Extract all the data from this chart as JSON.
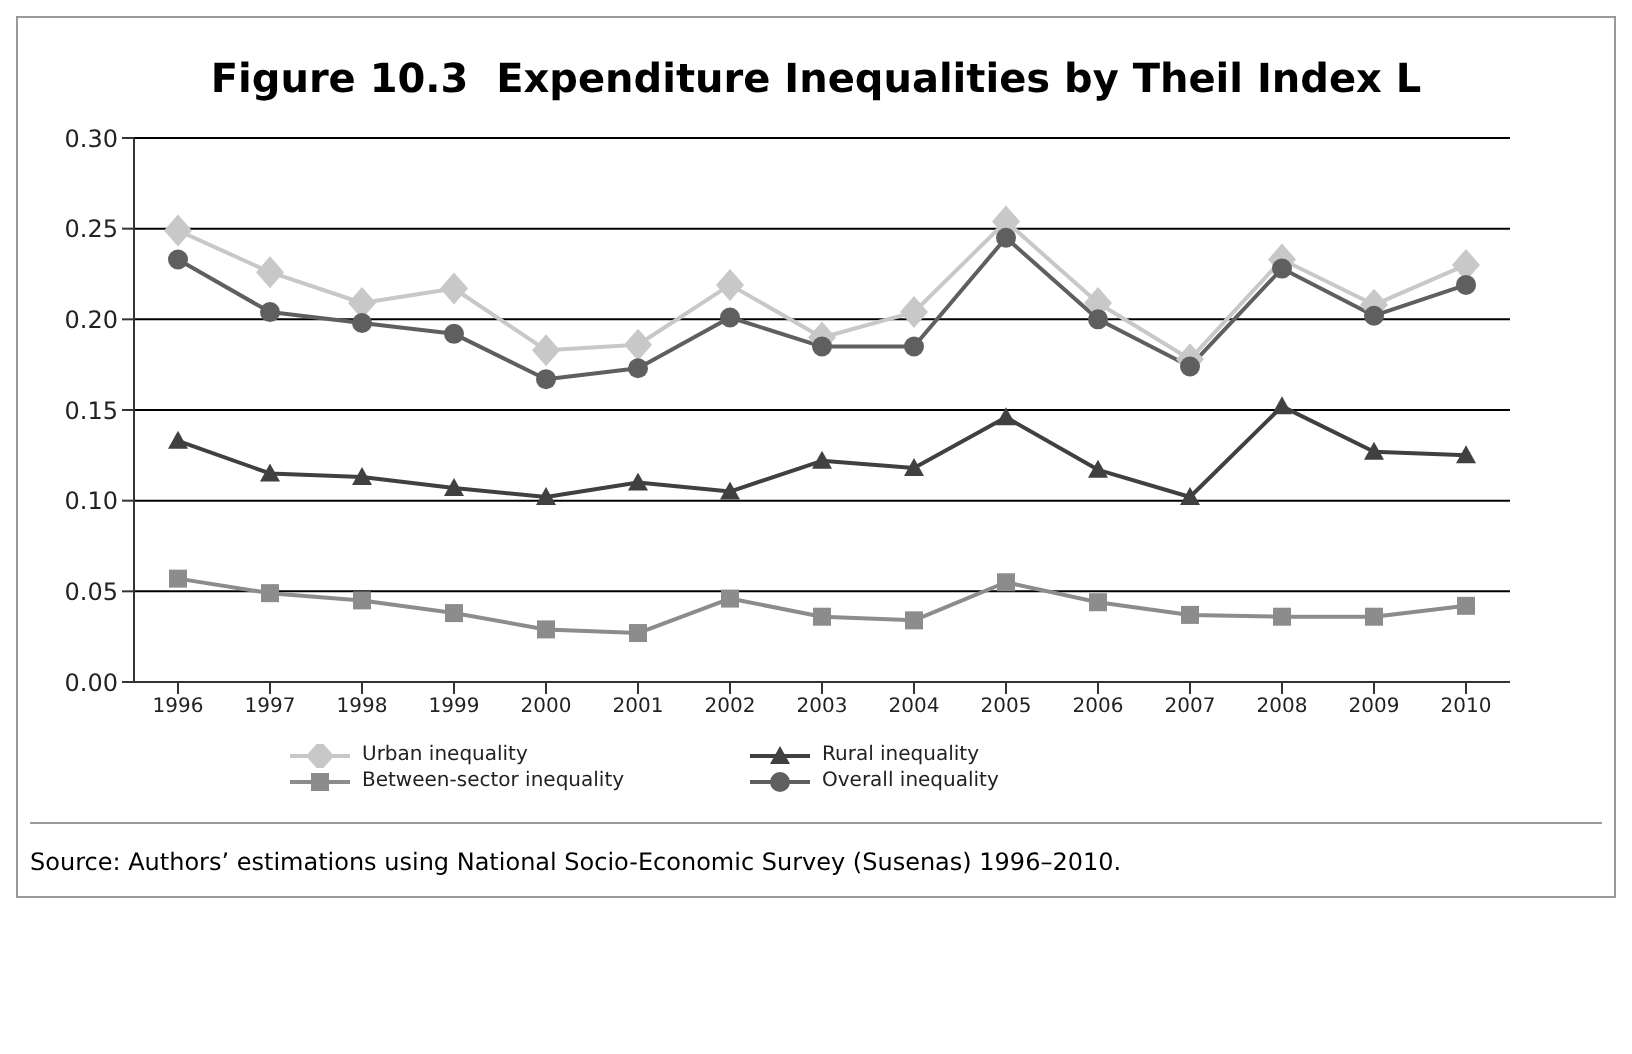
{
  "chart_data": {
    "type": "line",
    "title": "Figure 10.3  Expenditure Inequalities by Theil Index L",
    "categories": [
      "1996",
      "1997",
      "1998",
      "1999",
      "2000",
      "2001",
      "2002",
      "2003",
      "2004",
      "2005",
      "2006",
      "2007",
      "2008",
      "2009",
      "2010"
    ],
    "series": [
      {
        "name": "Urban inequality",
        "color": "#c8c8c8",
        "marker": "diamond",
        "values": [
          0.249,
          0.226,
          0.209,
          0.217,
          0.183,
          0.186,
          0.219,
          0.19,
          0.204,
          0.254,
          0.209,
          0.178,
          0.233,
          0.208,
          0.23
        ]
      },
      {
        "name": "Rural inequality",
        "color": "#404040",
        "marker": "triangle",
        "values": [
          0.133,
          0.115,
          0.113,
          0.107,
          0.102,
          0.11,
          0.105,
          0.122,
          0.118,
          0.146,
          0.117,
          0.102,
          0.152,
          0.127,
          0.125
        ]
      },
      {
        "name": "Between-sector inequality",
        "color": "#8c8c8c",
        "marker": "square",
        "values": [
          0.057,
          0.049,
          0.045,
          0.038,
          0.029,
          0.027,
          0.046,
          0.036,
          0.034,
          0.055,
          0.044,
          0.037,
          0.036,
          0.036,
          0.042
        ]
      },
      {
        "name": "Overall inequality",
        "color": "#5f5f5f",
        "marker": "circle",
        "values": [
          0.233,
          0.204,
          0.198,
          0.192,
          0.167,
          0.173,
          0.201,
          0.185,
          0.185,
          0.245,
          0.2,
          0.174,
          0.228,
          0.202,
          0.219
        ]
      }
    ],
    "ylim": [
      0,
      0.3
    ],
    "yticks": [
      {
        "value": 0,
        "label": "0.00"
      },
      {
        "value": 0.05,
        "label": "0.05"
      },
      {
        "value": 0.1,
        "label": "0.10"
      },
      {
        "value": 0.15,
        "label": "0.15"
      },
      {
        "value": 0.2,
        "label": "0.20"
      },
      {
        "value": 0.25,
        "label": "0.25"
      },
      {
        "value": 0.3,
        "label": "0.30"
      }
    ],
    "grid": "y",
    "legend": "bottom",
    "line_style": "solid",
    "annotations": [
      "Source: Authors’ estimations using National Socio-Economic Survey (Susenas) 1996–2010."
    ]
  }
}
